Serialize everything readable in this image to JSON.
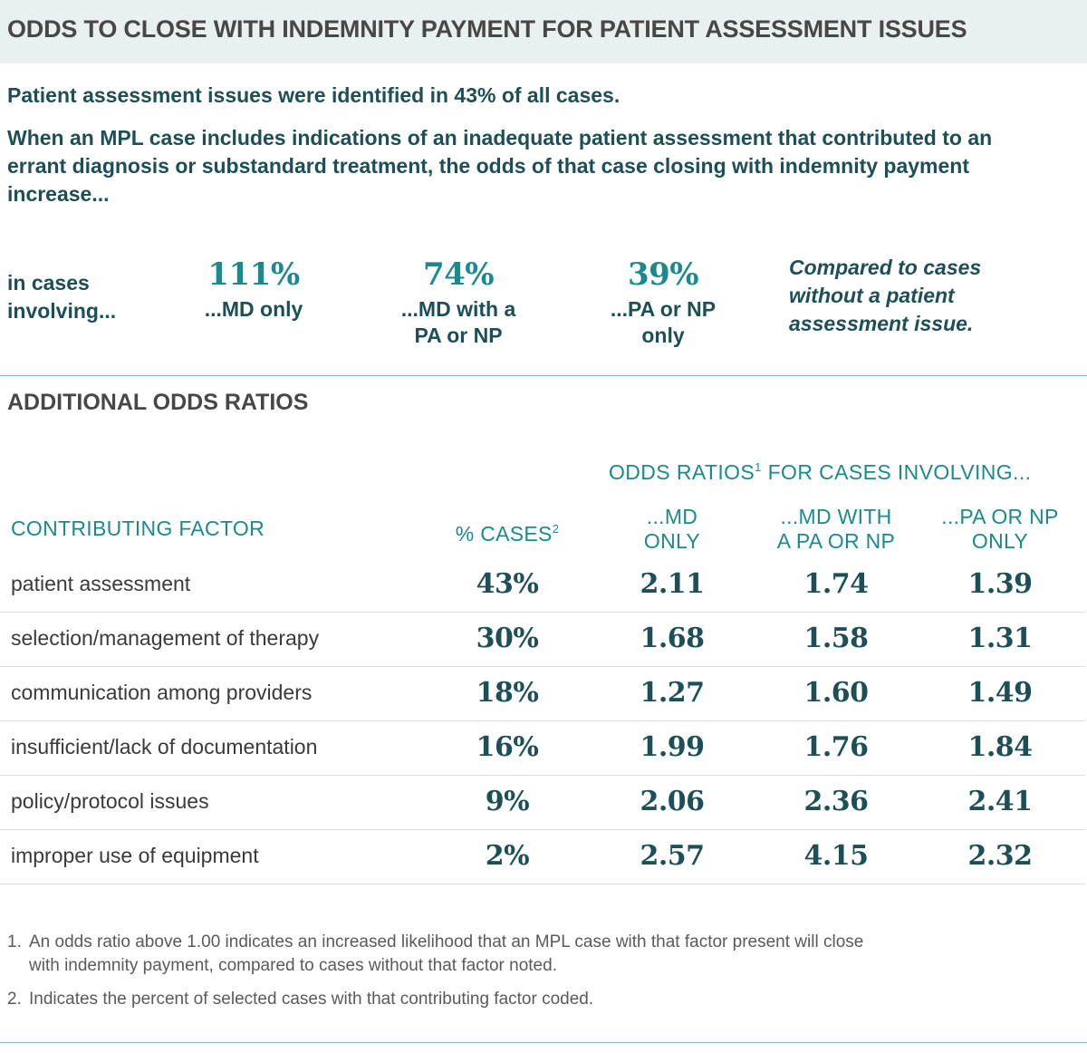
{
  "title": "ODDS TO CLOSE WITH INDEMNITY PAYMENT FOR PATIENT ASSESSMENT ISSUES",
  "intro": {
    "line1": "Patient assessment issues were identified in 43% of all cases.",
    "line2": "When an MPL case includes indications of an inadequate patient assessment that contributed to an errant diagnosis or substandard treatment, the odds of that case closing with indemnity payment increase..."
  },
  "summary": {
    "lead_line1": "in cases",
    "lead_line2": "involving...",
    "stats": [
      {
        "value": "111%",
        "label_line1": "...MD only",
        "label_line2": ""
      },
      {
        "value": "74%",
        "label_line1": "...MD with a",
        "label_line2": "PA or NP"
      },
      {
        "value": "39%",
        "label_line1": "...PA or NP",
        "label_line2": "only"
      }
    ],
    "compare_line1": "Compared to cases",
    "compare_line2": "without a patient",
    "compare_line3": "assessment issue."
  },
  "additional": {
    "heading": "ADDITIONAL ODDS RATIOS",
    "group_header": "ODDS RATIOS",
    "group_header_sup": "1",
    "group_header_tail": " FOR CASES INVOLVING...",
    "columns": {
      "factor": "CONTRIBUTING FACTOR",
      "pct": "% CASES",
      "pct_sup": "2",
      "md_line1": "...MD",
      "md_line2": "ONLY",
      "mdpa_line1": "...MD WITH",
      "mdpa_line2": "A PA OR NP",
      "pa_line1": "...PA OR NP",
      "pa_line2": "ONLY"
    },
    "rows": [
      {
        "factor": "patient assessment",
        "pct": "43%",
        "md": "2.11",
        "mdpa": "1.74",
        "pa": "1.39"
      },
      {
        "factor": "selection/management of therapy",
        "pct": "30%",
        "md": "1.68",
        "mdpa": "1.58",
        "pa": "1.31"
      },
      {
        "factor": "communication among providers",
        "pct": "18%",
        "md": "1.27",
        "mdpa": "1.60",
        "pa": "1.49"
      },
      {
        "factor": "insufficient/lack of documentation",
        "pct": "16%",
        "md": "1.99",
        "mdpa": "1.76",
        "pa": "1.84"
      },
      {
        "factor": "policy/protocol issues",
        "pct": "9%",
        "md": "2.06",
        "mdpa": "2.36",
        "pa": "2.41"
      },
      {
        "factor": "improper use of equipment",
        "pct": "2%",
        "md": "2.57",
        "mdpa": "4.15",
        "pa": "2.32"
      }
    ]
  },
  "footnotes": [
    {
      "num": "1.",
      "line1": "An odds ratio above 1.00 indicates an increased likelihood that an MPL case with that factor present will close",
      "line2": "with indemnity payment, compared to cases without that factor noted."
    },
    {
      "num": "2.",
      "line1": "Indicates the percent of selected cases with that contributing factor coded.",
      "line2": ""
    }
  ],
  "colors": {
    "teal": "#1b8a8e",
    "dark_teal": "#1c4f57",
    "title_bg": "#e9f1f0"
  }
}
